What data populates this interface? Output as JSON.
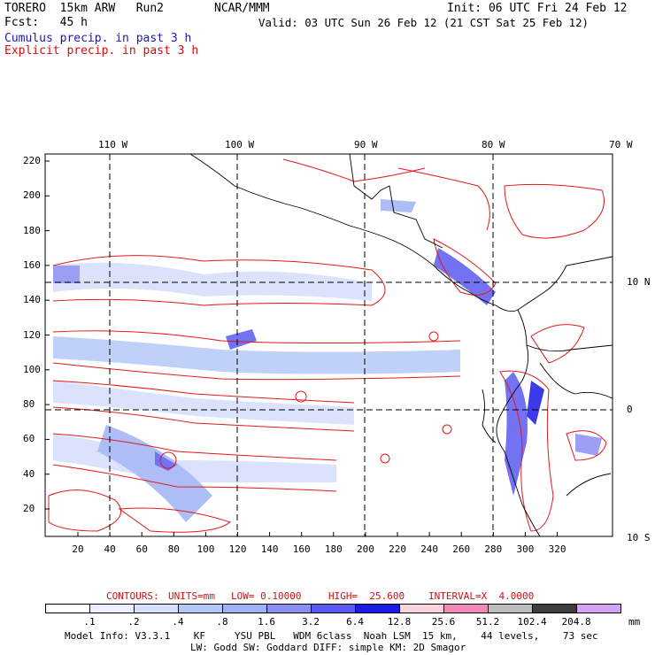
{
  "header": {
    "model": "TORERO  15km ARW   Run2",
    "org": "NCAR/MMM",
    "init": "Init: 06 UTC Fri 24 Feb 12",
    "fcst": "Fcst:   45 h",
    "valid": "Valid: 03 UTC Sun 26 Feb 12 (21 CST Sat 25 Feb 12)",
    "line1": "Cumulus precip. in past 3 h",
    "line2": "Explicit precip. in past 3 h"
  },
  "map": {
    "lon_labels": [
      "110 W",
      "100 W",
      "90 W",
      "80 W",
      "70 W"
    ],
    "lat_labels": [
      "10 N",
      "0",
      "10 S"
    ],
    "y_ticks": [
      "220",
      "200",
      "180",
      "160",
      "140",
      "120",
      "100",
      "80",
      "60",
      "40",
      "20"
    ],
    "x_ticks": [
      "20",
      "40",
      "60",
      "80",
      "100",
      "120",
      "140",
      "160",
      "180",
      "200",
      "220",
      "240",
      "260",
      "280",
      "300",
      "320"
    ]
  },
  "contours": {
    "label": "CONTOURS:",
    "units": "UNITS=mm",
    "low": "LOW= 0.10000",
    "high": "HIGH=  25.600",
    "interval": "INTERVAL=X  4.0000"
  },
  "legend": {
    "labels": [
      ".1",
      ".2",
      ".4",
      ".8",
      "1.6",
      "3.2",
      "6.4",
      "12.8",
      "25.6",
      "51.2",
      "102.4",
      "204.8"
    ],
    "unit": "mm",
    "colors": [
      "#ffffff",
      "#ebefff",
      "#d5defc",
      "#b4c8f8",
      "#9fb2f5",
      "#8b8ef2",
      "#5a5af0",
      "#1a1ae6",
      "#f9d3da",
      "#f28ab8",
      "#bdbdbd",
      "#3e3e3e",
      "#d5a3f5"
    ]
  },
  "footer": {
    "line1": "Model Info: V3.3.1    KF     YSU PBL   WDM 6class  Noah LSM  15 km,    44 levels,    73 sec",
    "line2": "LW: Godd SW: Goddard DIFF: simple KM: 2D Smagor"
  }
}
